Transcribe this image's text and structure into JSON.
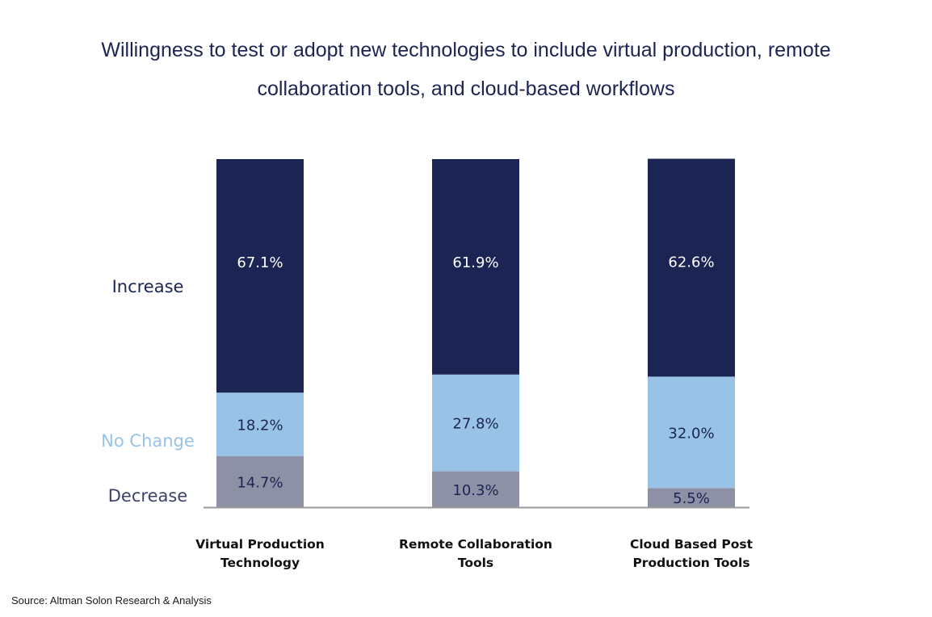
{
  "title_lines": [
    "Willingness to test or adopt new technologies to include virtual production, remote",
    "collaboration tools, and cloud-based workflows"
  ],
  "source": "Source: Altman Solon Research & Analysis",
  "colors": {
    "increase": "#1b2453",
    "no_change": "#99c3e6",
    "decrease": "#8e91a5",
    "decrease_label": "#3d4266",
    "increase_label_text": "#ffffff",
    "segment_label_text": "#1b2453",
    "axis": "#9a9a9a"
  },
  "chart_data": {
    "type": "bar",
    "stacked": true,
    "categories": [
      [
        "Virtual Production",
        "Technology"
      ],
      [
        "Remote Collaboration",
        "Tools"
      ],
      [
        "Cloud Based Post",
        "Production Tools"
      ]
    ],
    "series": [
      {
        "name": "Decrease",
        "values": [
          14.7,
          10.3,
          5.5
        ],
        "labels": [
          "14.7%",
          "10.3%",
          "5.5%"
        ]
      },
      {
        "name": "No Change",
        "values": [
          18.2,
          27.8,
          32.0
        ],
        "labels": [
          "18.2%",
          "27.8%",
          "32.0%"
        ]
      },
      {
        "name": "Increase",
        "values": [
          67.1,
          61.9,
          62.6
        ],
        "labels": [
          "67.1%",
          "61.9%",
          "62.6%"
        ]
      }
    ],
    "ylim": [
      0,
      100
    ],
    "legend_placement": "left"
  }
}
